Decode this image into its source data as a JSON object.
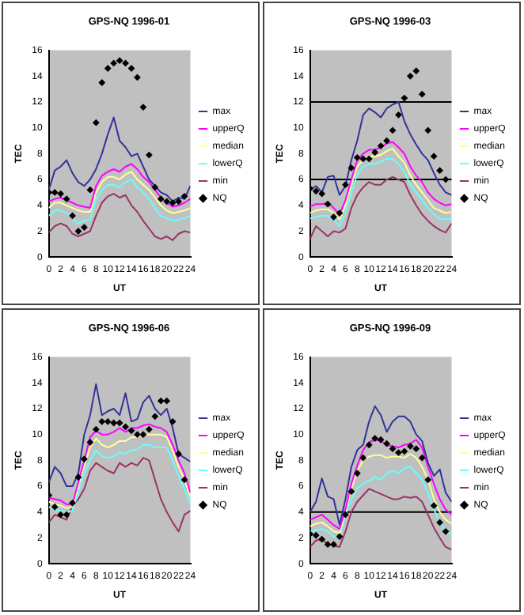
{
  "chart_data": [
    {
      "type": "line",
      "title": "GPS-NQ 1996-01",
      "xlabel": "UT",
      "ylabel": "TEC",
      "legend": "right",
      "x": [
        0,
        1,
        2,
        3,
        4,
        5,
        6,
        7,
        8,
        9,
        10,
        11,
        12,
        13,
        14,
        15,
        16,
        17,
        18,
        19,
        20,
        21,
        22,
        23,
        24
      ],
      "xlim": [
        0,
        24
      ],
      "xticks": [
        0,
        2,
        4,
        6,
        8,
        10,
        12,
        14,
        16,
        18,
        20,
        22,
        24
      ],
      "ylim": [
        0,
        16
      ],
      "yticks": [
        0,
        2,
        4,
        6,
        8,
        10,
        12,
        14,
        16
      ],
      "series": [
        {
          "name": "max",
          "color": "#333399",
          "values": [
            5.2,
            6.7,
            7.0,
            7.5,
            6.5,
            5.8,
            5.5,
            6.0,
            6.8,
            8.0,
            9.5,
            10.8,
            9.0,
            8.5,
            7.8,
            8.0,
            7.0,
            6.0,
            5.5,
            5.0,
            4.8,
            4.3,
            4.6,
            4.5,
            5.5
          ]
        },
        {
          "name": "upperQ",
          "color": "#ff00ff",
          "values": [
            4.3,
            4.5,
            4.6,
            4.4,
            4.2,
            4.0,
            3.9,
            3.8,
            5.5,
            6.3,
            6.6,
            6.8,
            6.6,
            7.0,
            7.2,
            6.8,
            6.2,
            5.8,
            5.2,
            4.6,
            4.2,
            3.9,
            4.0,
            4.2,
            4.5
          ]
        },
        {
          "name": "median",
          "color": "#ffff99",
          "values": [
            3.8,
            4.2,
            4.2,
            4.0,
            3.8,
            3.6,
            3.5,
            3.5,
            5.0,
            5.8,
            6.2,
            6.2,
            6.0,
            6.4,
            6.6,
            6.0,
            5.6,
            5.2,
            4.6,
            4.0,
            3.6,
            3.4,
            3.5,
            3.6,
            3.8
          ]
        },
        {
          "name": "lowerQ",
          "color": "#66ffff",
          "values": [
            3.2,
            3.6,
            3.6,
            3.4,
            3.0,
            2.6,
            2.8,
            2.9,
            4.5,
            5.2,
            5.6,
            5.6,
            5.4,
            5.8,
            6.0,
            5.4,
            5.0,
            4.5,
            3.8,
            3.2,
            3.0,
            2.8,
            2.9,
            3.0,
            3.2
          ]
        },
        {
          "name": "min",
          "color": "#993366",
          "values": [
            1.9,
            2.4,
            2.6,
            2.4,
            1.8,
            1.6,
            1.8,
            2.0,
            3.2,
            4.2,
            4.7,
            4.9,
            4.6,
            4.8,
            4.0,
            3.5,
            2.8,
            2.2,
            1.6,
            1.4,
            1.6,
            1.3,
            1.8,
            2.0,
            1.9
          ]
        },
        {
          "name": "NQ",
          "type": "scatter",
          "marker": "diamond",
          "color": "#000000",
          "x": [
            0,
            1,
            2,
            3,
            4,
            5,
            6,
            7,
            8,
            9,
            10,
            11,
            12,
            13,
            14,
            15,
            16,
            17,
            18,
            19,
            20,
            21,
            22,
            23
          ],
          "values": [
            5.0,
            5.0,
            4.9,
            4.5,
            3.2,
            2.0,
            2.3,
            5.2,
            10.4,
            13.5,
            14.6,
            15.0,
            15.2,
            15.0,
            14.6,
            13.9,
            11.6,
            7.9,
            5.4,
            4.5,
            4.3,
            4.2,
            4.3,
            4.7
          ]
        }
      ]
    },
    {
      "type": "line",
      "title": "GPS-NQ 1996-03",
      "xlabel": "UT",
      "ylabel": "TEC",
      "legend": "right",
      "x": [
        0,
        1,
        2,
        3,
        4,
        5,
        6,
        7,
        8,
        9,
        10,
        11,
        12,
        13,
        14,
        15,
        16,
        17,
        18,
        19,
        20,
        21,
        22,
        23,
        24
      ],
      "xlim": [
        0,
        24
      ],
      "xticks": [
        0,
        2,
        4,
        6,
        8,
        10,
        12,
        14,
        16,
        18,
        20,
        22,
        24
      ],
      "ylim": [
        0,
        16
      ],
      "yticks": [
        0,
        2,
        4,
        6,
        8,
        10,
        12,
        14,
        16
      ],
      "ref_lines": [
        {
          "axis": "y",
          "value": 12,
          "color": "#000000"
        },
        {
          "axis": "y",
          "value": 6,
          "color": "#000000"
        }
      ],
      "series": [
        {
          "name": "max",
          "color": "#333399",
          "values": [
            5.2,
            5.5,
            5.0,
            6.2,
            6.3,
            4.8,
            5.5,
            7.5,
            9.0,
            11.0,
            11.5,
            11.2,
            10.8,
            11.5,
            11.8,
            12.0,
            10.5,
            9.5,
            8.7,
            8.0,
            7.5,
            6.5,
            5.6,
            5.0,
            4.8
          ]
        },
        {
          "name": "upperQ",
          "color": "#ff00ff",
          "values": [
            3.9,
            4.1,
            4.1,
            4.2,
            3.8,
            3.3,
            4.4,
            6.0,
            7.5,
            8.0,
            8.3,
            8.3,
            8.5,
            8.8,
            8.9,
            8.5,
            8.0,
            7.0,
            6.3,
            5.8,
            5.0,
            4.5,
            4.2,
            4.0,
            4.1
          ]
        },
        {
          "name": "median",
          "color": "#ffff99",
          "values": [
            3.4,
            3.6,
            3.7,
            3.7,
            3.4,
            2.9,
            4.0,
            5.6,
            7.0,
            7.5,
            7.8,
            7.8,
            7.9,
            8.2,
            8.4,
            7.8,
            7.3,
            6.3,
            5.6,
            5.0,
            4.4,
            3.8,
            3.6,
            3.4,
            3.5
          ]
        },
        {
          "name": "lowerQ",
          "color": "#66ffff",
          "values": [
            3.0,
            3.1,
            3.2,
            3.2,
            2.9,
            2.4,
            3.4,
            5.0,
            6.4,
            7.0,
            7.2,
            7.2,
            7.4,
            7.6,
            7.6,
            7.2,
            6.6,
            5.6,
            5.0,
            4.4,
            3.8,
            3.3,
            3.0,
            2.9,
            3.0
          ]
        },
        {
          "name": "min",
          "color": "#993366",
          "values": [
            1.4,
            2.4,
            2.0,
            1.6,
            2.0,
            1.9,
            2.2,
            3.8,
            4.8,
            5.4,
            5.8,
            5.6,
            5.6,
            6.0,
            6.2,
            6.0,
            5.8,
            4.8,
            4.0,
            3.3,
            2.8,
            2.4,
            2.1,
            1.9,
            2.6
          ]
        },
        {
          "name": "NQ",
          "type": "scatter",
          "marker": "diamond",
          "color": "#000000",
          "x": [
            0,
            1,
            2,
            3,
            4,
            5,
            6,
            7,
            8,
            9,
            10,
            11,
            12,
            13,
            14,
            15,
            16,
            17,
            18,
            19,
            20,
            21,
            22,
            23
          ],
          "values": [
            5.3,
            5.1,
            4.9,
            4.1,
            3.1,
            3.4,
            5.6,
            6.9,
            7.7,
            7.6,
            7.6,
            8.1,
            8.6,
            9.0,
            9.8,
            11.0,
            12.3,
            14.0,
            14.4,
            12.6,
            9.8,
            7.8,
            6.7,
            6.0
          ]
        }
      ]
    },
    {
      "type": "line",
      "title": "GPS-NQ 1996-06",
      "xlabel": "UT",
      "ylabel": "TEC",
      "legend": "right",
      "x": [
        0,
        1,
        2,
        3,
        4,
        5,
        6,
        7,
        8,
        9,
        10,
        11,
        12,
        13,
        14,
        15,
        16,
        17,
        18,
        19,
        20,
        21,
        22,
        23,
        24
      ],
      "xlim": [
        0,
        24
      ],
      "xticks": [
        0,
        2,
        4,
        6,
        8,
        10,
        12,
        14,
        16,
        18,
        20,
        22,
        24
      ],
      "ylim": [
        0,
        16
      ],
      "yticks": [
        0,
        2,
        4,
        6,
        8,
        10,
        12,
        14,
        16
      ],
      "series": [
        {
          "name": "max",
          "color": "#333399",
          "values": [
            6.3,
            7.5,
            7.0,
            6.0,
            6.0,
            7.0,
            10.0,
            11.5,
            13.9,
            11.5,
            11.8,
            12.0,
            11.5,
            13.2,
            11.0,
            11.2,
            12.5,
            13.0,
            12.0,
            11.5,
            12.0,
            10.5,
            8.5,
            8.2,
            7.9
          ]
        },
        {
          "name": "upperQ",
          "color": "#ff00ff",
          "values": [
            5.1,
            5.0,
            4.9,
            4.6,
            4.6,
            6.3,
            8.0,
            9.8,
            10.3,
            10.0,
            10.0,
            10.2,
            10.5,
            10.2,
            10.5,
            10.5,
            10.7,
            10.8,
            10.6,
            10.5,
            10.2,
            9.2,
            8.0,
            7.0,
            5.5
          ]
        },
        {
          "name": "median",
          "color": "#ffff99",
          "values": [
            4.8,
            4.6,
            4.5,
            4.3,
            4.4,
            6.0,
            7.6,
            9.0,
            9.7,
            9.2,
            9.0,
            9.2,
            9.5,
            9.5,
            9.8,
            9.8,
            10.0,
            10.0,
            10.0,
            10.0,
            9.8,
            8.8,
            7.5,
            6.5,
            5.2
          ]
        },
        {
          "name": "lowerQ",
          "color": "#66ffff",
          "values": [
            4.4,
            4.2,
            4.1,
            4.0,
            4.1,
            5.6,
            7.0,
            8.0,
            8.8,
            8.3,
            8.2,
            8.3,
            8.6,
            8.5,
            8.8,
            8.8,
            9.2,
            9.2,
            9.0,
            9.0,
            9.0,
            8.0,
            6.8,
            5.8,
            4.6
          ]
        },
        {
          "name": "min",
          "color": "#993366",
          "values": [
            3.2,
            3.8,
            3.6,
            3.4,
            4.5,
            5.0,
            5.8,
            7.2,
            7.8,
            7.5,
            7.2,
            7.0,
            7.8,
            7.5,
            7.8,
            7.6,
            8.2,
            8.0,
            6.5,
            5.0,
            4.0,
            3.2,
            2.5,
            3.8,
            4.1
          ]
        },
        {
          "name": "NQ",
          "type": "scatter",
          "marker": "diamond",
          "color": "#000000",
          "x": [
            0,
            1,
            2,
            3,
            4,
            5,
            6,
            7,
            8,
            9,
            10,
            11,
            12,
            13,
            14,
            15,
            16,
            17,
            18,
            19,
            20,
            21,
            22,
            23
          ],
          "values": [
            5.3,
            4.4,
            3.8,
            3.8,
            4.7,
            6.7,
            8.1,
            9.4,
            10.4,
            11.0,
            11.0,
            10.9,
            10.9,
            10.6,
            10.3,
            10.0,
            10.0,
            10.4,
            11.4,
            12.6,
            12.6,
            11.0,
            8.5,
            6.5
          ]
        }
      ]
    },
    {
      "type": "line",
      "title": "GPS-NQ 1996-09",
      "xlabel": "UT",
      "ylabel": "TEC",
      "legend": "right",
      "x": [
        0,
        1,
        2,
        3,
        4,
        5,
        6,
        7,
        8,
        9,
        10,
        11,
        12,
        13,
        14,
        15,
        16,
        17,
        18,
        19,
        20,
        21,
        22,
        23,
        24
      ],
      "xlim": [
        0,
        24
      ],
      "xticks": [
        0,
        2,
        4,
        6,
        8,
        10,
        12,
        14,
        16,
        18,
        20,
        22,
        24
      ],
      "ylim": [
        0,
        16
      ],
      "yticks": [
        0,
        2,
        4,
        6,
        8,
        10,
        12,
        14,
        16
      ],
      "ref_lines": [
        {
          "axis": "y",
          "value": 4,
          "color": "#000000"
        }
      ],
      "series": [
        {
          "name": "max",
          "color": "#333399",
          "values": [
            4.0,
            4.8,
            6.6,
            5.2,
            5.0,
            3.0,
            5.0,
            7.5,
            8.8,
            9.2,
            11.0,
            12.2,
            11.5,
            10.2,
            11.0,
            11.4,
            11.4,
            11.0,
            10.0,
            9.5,
            7.8,
            6.8,
            7.3,
            5.5,
            4.8
          ]
        },
        {
          "name": "upperQ",
          "color": "#ff00ff",
          "values": [
            3.4,
            3.6,
            3.8,
            3.4,
            3.0,
            2.7,
            4.2,
            6.2,
            7.6,
            8.8,
            9.4,
            9.6,
            9.5,
            9.2,
            9.1,
            9.0,
            9.2,
            9.3,
            9.6,
            9.0,
            7.5,
            6.2,
            5.0,
            4.2,
            3.8
          ]
        },
        {
          "name": "median",
          "color": "#ffff99",
          "values": [
            2.9,
            3.1,
            3.2,
            2.9,
            2.5,
            2.4,
            4.0,
            5.8,
            7.2,
            8.0,
            8.3,
            8.4,
            8.4,
            8.2,
            8.3,
            8.3,
            8.2,
            8.5,
            8.2,
            7.5,
            6.5,
            5.0,
            4.0,
            3.4,
            3.1
          ]
        },
        {
          "name": "lowerQ",
          "color": "#66ffff",
          "values": [
            2.5,
            2.6,
            2.7,
            2.5,
            2.1,
            2.0,
            3.8,
            5.0,
            5.8,
            6.2,
            6.4,
            6.7,
            6.5,
            7.0,
            7.2,
            7.0,
            7.4,
            7.5,
            7.0,
            6.5,
            5.5,
            4.2,
            3.2,
            2.6,
            2.2
          ]
        },
        {
          "name": "min",
          "color": "#993366",
          "values": [
            1.3,
            1.8,
            1.9,
            1.5,
            1.4,
            1.3,
            2.5,
            4.0,
            4.8,
            5.3,
            5.8,
            5.6,
            5.4,
            5.2,
            5.0,
            5.0,
            5.2,
            5.1,
            5.2,
            4.8,
            3.8,
            2.8,
            2.0,
            1.3,
            1.1
          ]
        },
        {
          "name": "NQ",
          "type": "scatter",
          "marker": "diamond",
          "color": "#000000",
          "x": [
            0,
            1,
            2,
            3,
            4,
            5,
            6,
            7,
            8,
            9,
            10,
            11,
            12,
            13,
            14,
            15,
            16,
            17,
            18,
            19,
            20,
            21,
            22,
            23
          ],
          "values": [
            2.3,
            2.2,
            1.9,
            1.5,
            1.5,
            2.1,
            3.8,
            5.6,
            7.0,
            8.2,
            9.2,
            9.7,
            9.6,
            9.3,
            8.9,
            8.6,
            8.7,
            9.1,
            8.9,
            8.2,
            6.5,
            4.5,
            3.2,
            2.5
          ]
        }
      ]
    }
  ]
}
